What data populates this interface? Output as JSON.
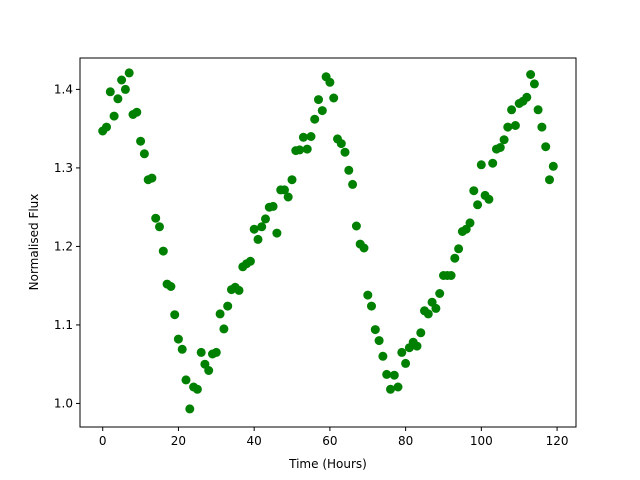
{
  "chart_data": {
    "type": "scatter",
    "title": "",
    "xlabel": "Time (Hours)",
    "ylabel": "Normalised Flux",
    "xlim": [
      -6,
      125
    ],
    "ylim": [
      0.97,
      1.44
    ],
    "xticks": [
      0,
      20,
      40,
      60,
      80,
      100,
      120
    ],
    "yticks": [
      1.0,
      1.1,
      1.2,
      1.3,
      1.4
    ],
    "ytick_labels": [
      "1.0",
      "1.1",
      "1.2",
      "1.3",
      "1.4"
    ],
    "marker_color": "#008000",
    "grid": false,
    "series": [
      {
        "x": [
          0,
          1,
          2,
          3,
          4,
          5,
          6,
          7,
          8,
          9,
          10,
          11,
          12,
          13,
          14,
          15,
          16,
          17,
          18,
          19,
          20,
          21,
          22,
          23,
          24,
          25,
          26,
          27,
          28,
          29,
          30,
          31,
          32,
          33,
          34,
          35,
          36,
          37,
          38,
          39,
          40,
          41,
          42,
          43,
          44,
          45,
          46,
          47,
          48,
          49,
          50,
          51,
          52,
          53,
          54,
          55,
          56,
          57,
          58,
          59,
          60,
          61,
          62,
          63,
          64,
          65,
          66,
          67,
          68,
          69,
          70,
          71,
          72,
          73,
          74,
          75,
          76,
          77,
          78,
          79,
          80,
          81,
          82,
          83,
          84,
          85,
          86,
          87,
          88,
          89,
          90,
          91,
          92,
          93,
          94,
          95,
          96,
          97,
          98,
          99,
          100,
          101,
          102,
          103,
          104,
          105,
          106,
          107,
          108,
          109,
          110,
          111,
          112,
          113,
          114,
          115,
          116,
          117,
          118,
          119
        ],
        "y": [
          1.347,
          1.352,
          1.397,
          1.366,
          1.388,
          1.412,
          1.4,
          1.421,
          1.368,
          1.371,
          1.334,
          1.318,
          1.285,
          1.287,
          1.236,
          1.225,
          1.194,
          1.152,
          1.149,
          1.113,
          1.082,
          1.069,
          1.03,
          0.993,
          1.021,
          1.018,
          1.065,
          1.05,
          1.042,
          1.063,
          1.065,
          1.114,
          1.095,
          1.124,
          1.145,
          1.148,
          1.144,
          1.174,
          1.178,
          1.181,
          1.222,
          1.209,
          1.225,
          1.235,
          1.25,
          1.251,
          1.217,
          1.272,
          1.272,
          1.263,
          1.285,
          1.322,
          1.323,
          1.339,
          1.324,
          1.34,
          1.362,
          1.387,
          1.373,
          1.416,
          1.409,
          1.389,
          1.337,
          1.331,
          1.32,
          1.297,
          1.279,
          1.226,
          1.203,
          1.198,
          1.138,
          1.124,
          1.094,
          1.08,
          1.06,
          1.037,
          1.018,
          1.036,
          1.021,
          1.065,
          1.051,
          1.071,
          1.078,
          1.073,
          1.09,
          1.118,
          1.114,
          1.129,
          1.121,
          1.14,
          1.163,
          1.163,
          1.163,
          1.185,
          1.197,
          1.219,
          1.222,
          1.23,
          1.271,
          1.253,
          1.304,
          1.265,
          1.26,
          1.306,
          1.324,
          1.326,
          1.336,
          1.352,
          1.374,
          1.354,
          1.382,
          1.385,
          1.39,
          1.419,
          1.407,
          1.374,
          1.352,
          1.327,
          1.285,
          1.302
        ]
      }
    ]
  }
}
